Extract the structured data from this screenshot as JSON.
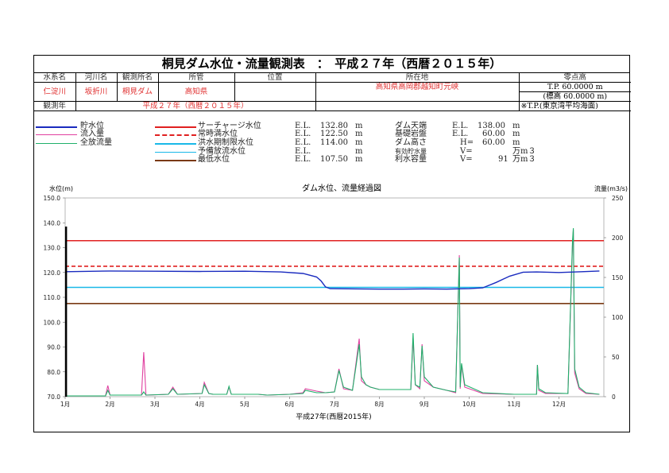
{
  "title": "桐見ダム水位・流量観測表　：　平成２７年（西暦２０１５年）",
  "info": {
    "headers": [
      "水系名",
      "河川名",
      "観測所名",
      "所管",
      "位置",
      "所在地",
      "零点高"
    ],
    "values": [
      "仁淀川",
      "坂折川",
      "桐見ダム",
      "高知県",
      "",
      "高知県高岡郡越知町元峡"
    ],
    "zero_point": "T.P. 60.0000 m",
    "zero_point_2": "(標高 60.0000 m)",
    "obs_year_label": "観測年",
    "obs_year": "平成２７年（西暦２０１５年）",
    "tp_note": "※T.P.(東京湾平均海面)"
  },
  "legend": {
    "series": [
      "貯水位",
      "流入量",
      "全放流量"
    ],
    "levels": [
      {
        "name": "サーチャージ水位",
        "prefix": "E.L.",
        "value": "132.80",
        "unit": "m",
        "color": "#e02020",
        "style": "solid"
      },
      {
        "name": "常時満水位",
        "prefix": "E.L.",
        "value": "122.50",
        "unit": "m",
        "color": "#e02020",
        "style": "dashed"
      },
      {
        "name": "洪水期制限水位",
        "prefix": "E.L.",
        "value": "114.00",
        "unit": "m",
        "color": "#19b8e8",
        "style": "solid"
      },
      {
        "name": "予備放流水位",
        "prefix": "E.L.",
        "value": "",
        "unit": "m",
        "color": "#19b8e8",
        "style": "solid"
      },
      {
        "name": "最低水位",
        "prefix": "E.L.",
        "value": "107.50",
        "unit": "m",
        "color": "#7a3a14",
        "style": "solid"
      }
    ],
    "dam": [
      {
        "name": "ダム天端",
        "prefix": "E.L.",
        "value": "138.00",
        "unit": "m"
      },
      {
        "name": "基礎岩盤",
        "prefix": "E.L.",
        "value": "60.00",
        "unit": "m"
      },
      {
        "name": "ダム高さ",
        "prefix": "H=",
        "value": "60.00",
        "unit": "m"
      },
      {
        "name": "有効貯水量",
        "prefix": "V=",
        "value": "",
        "unit": "万m３"
      },
      {
        "name": "利水容量",
        "prefix": "V=",
        "value": "91",
        "unit": "万m３"
      }
    ]
  },
  "chart_data": {
    "type": "line",
    "title": "ダム水位、流量経過図",
    "ylabel_left": "水位(m)",
    "ylabel_right": "流量(m3/s)",
    "xlabel": "平成27年(西暦2015年)",
    "xlim": [
      1,
      13
    ],
    "ylim_left": [
      70,
      150
    ],
    "ylim_right": [
      0,
      250
    ],
    "x_ticks": [
      "1月",
      "2月",
      "3月",
      "4月",
      "5月",
      "6月",
      "7月",
      "8月",
      "9月",
      "10月",
      "11月",
      "12月"
    ],
    "y_left_ticks": [
      "70.0",
      "80.0",
      "90.0",
      "100.0",
      "110.0",
      "120.0",
      "130.0",
      "140.0",
      "150.0"
    ],
    "y_right_ticks": [
      "0",
      "50",
      "100",
      "150",
      "200",
      "250"
    ],
    "series": [
      {
        "name": "貯水位",
        "axis": "left",
        "color": "#1a2bbf",
        "points": [
          [
            1.0,
            120.3
          ],
          [
            2.0,
            120.6
          ],
          [
            3.0,
            120.5
          ],
          [
            4.0,
            120.4
          ],
          [
            5.0,
            120.5
          ],
          [
            5.8,
            120.2
          ],
          [
            6.3,
            119.6
          ],
          [
            6.6,
            118.2
          ],
          [
            6.7,
            116.6
          ],
          [
            6.8,
            114.2
          ],
          [
            6.9,
            113.5
          ],
          [
            7.5,
            113.4
          ],
          [
            8.0,
            113.3
          ],
          [
            8.5,
            113.3
          ],
          [
            9.0,
            113.4
          ],
          [
            9.5,
            113.3
          ],
          [
            10.0,
            113.5
          ],
          [
            10.3,
            113.8
          ],
          [
            10.6,
            116.0
          ],
          [
            10.9,
            118.5
          ],
          [
            11.2,
            120.1
          ],
          [
            11.5,
            120.2
          ],
          [
            12.0,
            120.0
          ],
          [
            12.5,
            120.3
          ],
          [
            12.9,
            120.6
          ]
        ]
      },
      {
        "name": "流入量",
        "axis": "right",
        "color": "#e040a0",
        "points": [
          [
            1.0,
            1
          ],
          [
            1.9,
            1
          ],
          [
            1.95,
            14
          ],
          [
            2.0,
            2
          ],
          [
            2.7,
            2
          ],
          [
            2.75,
            56
          ],
          [
            2.8,
            2
          ],
          [
            3.3,
            3
          ],
          [
            3.4,
            12
          ],
          [
            3.5,
            3
          ],
          [
            4.05,
            4
          ],
          [
            4.1,
            18
          ],
          [
            4.2,
            4
          ],
          [
            4.3,
            3
          ],
          [
            4.6,
            3
          ],
          [
            4.65,
            12
          ],
          [
            4.7,
            3
          ],
          [
            5.3,
            3
          ],
          [
            5.5,
            2
          ],
          [
            6.0,
            3
          ],
          [
            6.3,
            5
          ],
          [
            6.35,
            10
          ],
          [
            6.6,
            7
          ],
          [
            6.8,
            5
          ],
          [
            7.0,
            6
          ],
          [
            7.1,
            35
          ],
          [
            7.2,
            10
          ],
          [
            7.4,
            8
          ],
          [
            7.55,
            73
          ],
          [
            7.6,
            20
          ],
          [
            7.7,
            15
          ],
          [
            7.8,
            12
          ],
          [
            8.0,
            9
          ],
          [
            8.7,
            9
          ],
          [
            8.75,
            74
          ],
          [
            8.8,
            15
          ],
          [
            8.9,
            10
          ],
          [
            8.95,
            66
          ],
          [
            9.0,
            20
          ],
          [
            9.2,
            12
          ],
          [
            9.5,
            8
          ],
          [
            9.7,
            5
          ],
          [
            9.78,
            178
          ],
          [
            9.8,
            10
          ],
          [
            9.83,
            40
          ],
          [
            9.9,
            12
          ],
          [
            10.3,
            4
          ],
          [
            11.0,
            3
          ],
          [
            11.5,
            3
          ],
          [
            11.52,
            40
          ],
          [
            11.55,
            8
          ],
          [
            11.7,
            4
          ],
          [
            12.2,
            4
          ],
          [
            12.3,
            190
          ],
          [
            12.32,
            210
          ],
          [
            12.35,
            30
          ],
          [
            12.45,
            10
          ],
          [
            12.6,
            4
          ],
          [
            12.9,
            3
          ]
        ]
      },
      {
        "name": "全放流量",
        "axis": "right",
        "color": "#1fb06a",
        "points": [
          [
            1.0,
            1
          ],
          [
            1.9,
            1
          ],
          [
            1.95,
            8
          ],
          [
            2.0,
            2
          ],
          [
            2.7,
            2
          ],
          [
            2.75,
            6
          ],
          [
            2.8,
            2
          ],
          [
            3.3,
            3
          ],
          [
            3.4,
            10
          ],
          [
            3.5,
            3
          ],
          [
            4.05,
            4
          ],
          [
            4.1,
            15
          ],
          [
            4.2,
            4
          ],
          [
            4.3,
            3
          ],
          [
            4.6,
            3
          ],
          [
            4.65,
            13
          ],
          [
            4.7,
            3
          ],
          [
            5.3,
            3
          ],
          [
            5.5,
            2
          ],
          [
            6.0,
            3
          ],
          [
            6.3,
            4
          ],
          [
            6.35,
            8
          ],
          [
            6.6,
            5
          ],
          [
            6.8,
            5
          ],
          [
            7.0,
            6
          ],
          [
            7.1,
            33
          ],
          [
            7.2,
            12
          ],
          [
            7.4,
            8
          ],
          [
            7.55,
            66
          ],
          [
            7.6,
            25
          ],
          [
            7.7,
            15
          ],
          [
            7.8,
            12
          ],
          [
            8.0,
            9
          ],
          [
            8.7,
            9
          ],
          [
            8.75,
            80
          ],
          [
            8.8,
            15
          ],
          [
            8.9,
            12
          ],
          [
            8.95,
            64
          ],
          [
            9.0,
            25
          ],
          [
            9.2,
            12
          ],
          [
            9.5,
            8
          ],
          [
            9.7,
            6
          ],
          [
            9.78,
            175
          ],
          [
            9.8,
            12
          ],
          [
            9.83,
            42
          ],
          [
            9.9,
            15
          ],
          [
            10.3,
            5
          ],
          [
            11.0,
            3
          ],
          [
            11.5,
            3
          ],
          [
            11.52,
            40
          ],
          [
            11.55,
            10
          ],
          [
            11.7,
            5
          ],
          [
            12.2,
            4
          ],
          [
            12.3,
            195
          ],
          [
            12.32,
            212
          ],
          [
            12.35,
            35
          ],
          [
            12.45,
            12
          ],
          [
            12.6,
            5
          ],
          [
            12.9,
            3
          ]
        ]
      }
    ],
    "reference_lines": [
      {
        "name": "サーチャージ水位",
        "y": 132.8,
        "color": "#e02020",
        "style": "solid"
      },
      {
        "name": "常時満水位",
        "y": 122.5,
        "color": "#e02020",
        "style": "dashed"
      },
      {
        "name": "洪水期制限水位",
        "y": 114.0,
        "color": "#19b8e8",
        "style": "solid"
      },
      {
        "name": "最低水位",
        "y": 107.5,
        "color": "#7a3a14",
        "style": "solid"
      }
    ],
    "grid": false
  }
}
